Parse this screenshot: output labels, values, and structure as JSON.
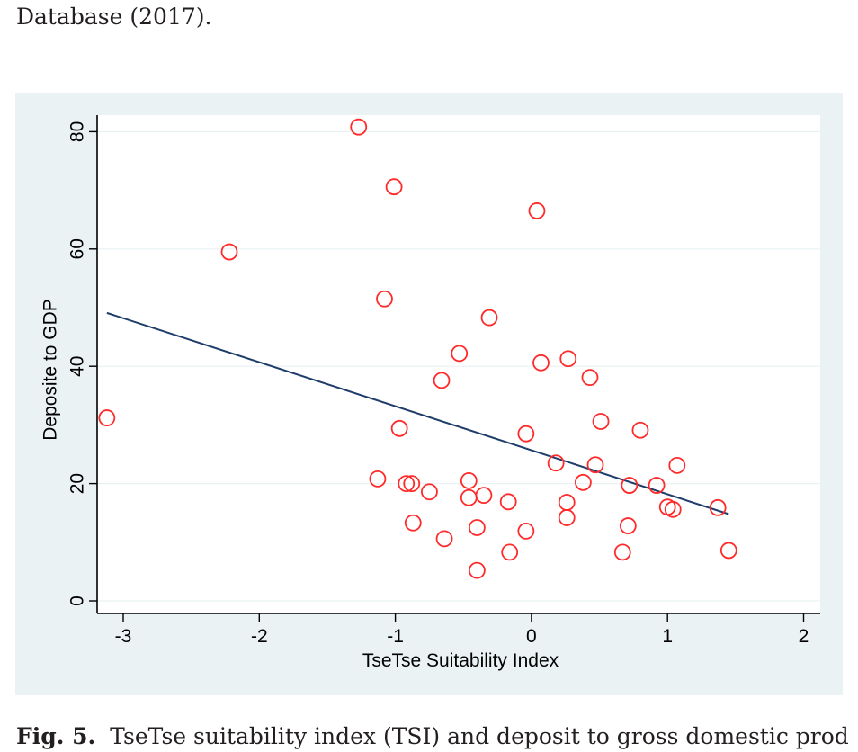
{
  "document": {
    "top_text": "Database (2017).",
    "caption_label": "Fig. 5.",
    "caption_text": "TseTse suitability index (TSI) and deposit to gross domestic prod"
  },
  "colors": {
    "panel_background": "#eaf2f3",
    "plot_background": "#ffffff",
    "grid": "#eaf2f3",
    "axis": "#000000",
    "marker": "#ff2a2a",
    "fit_line": "#1f3d6b"
  },
  "chart_data": {
    "type": "scatter",
    "title": "",
    "xlabel": "TseTse Suitability Index",
    "ylabel": "Deposite to GDP",
    "xlim": [
      -3.2,
      2.1
    ],
    "ylim": [
      -2,
      83
    ],
    "xticks": [
      -3,
      -2,
      -1,
      0,
      1,
      2
    ],
    "xtick_labels": [
      "-3",
      "-2",
      "-1",
      "0",
      "1",
      "2"
    ],
    "yticks": [
      0,
      20,
      40,
      60,
      80
    ],
    "ytick_labels": [
      "0",
      "20",
      "40",
      "60",
      "80"
    ],
    "grid": "horizontal",
    "legend": "none",
    "series": [
      {
        "marker": "hollow-circle",
        "points": [
          [
            -3.12,
            31.2
          ],
          [
            -2.22,
            59.5
          ],
          [
            -1.27,
            80.8
          ],
          [
            -1.01,
            70.6
          ],
          [
            -1.08,
            51.5
          ],
          [
            -0.97,
            29.4
          ],
          [
            -1.13,
            20.8
          ],
          [
            -0.92,
            20.0
          ],
          [
            -0.88,
            20.0
          ],
          [
            -0.87,
            13.3
          ],
          [
            -0.75,
            18.6
          ],
          [
            -0.66,
            37.6
          ],
          [
            -0.64,
            10.6
          ],
          [
            -0.53,
            42.2
          ],
          [
            -0.46,
            20.5
          ],
          [
            -0.46,
            17.6
          ],
          [
            -0.4,
            12.5
          ],
          [
            -0.4,
            5.2
          ],
          [
            -0.35,
            18.0
          ],
          [
            -0.31,
            48.3
          ],
          [
            -0.17,
            16.9
          ],
          [
            -0.16,
            8.3
          ],
          [
            -0.04,
            28.5
          ],
          [
            -0.04,
            11.9
          ],
          [
            0.04,
            66.5
          ],
          [
            0.07,
            40.6
          ],
          [
            0.18,
            23.5
          ],
          [
            0.26,
            16.8
          ],
          [
            0.26,
            14.2
          ],
          [
            0.27,
            41.3
          ],
          [
            0.38,
            20.2
          ],
          [
            0.43,
            38.1
          ],
          [
            0.47,
            23.2
          ],
          [
            0.51,
            30.6
          ],
          [
            0.67,
            8.3
          ],
          [
            0.71,
            12.8
          ],
          [
            0.72,
            19.7
          ],
          [
            0.8,
            29.1
          ],
          [
            0.92,
            19.7
          ],
          [
            1.0,
            16.0
          ],
          [
            1.04,
            15.6
          ],
          [
            1.07,
            23.1
          ],
          [
            1.37,
            15.9
          ],
          [
            1.45,
            8.6
          ]
        ]
      }
    ],
    "fit_line": {
      "x": [
        -3.12,
        1.45
      ],
      "y": [
        49.1,
        14.8
      ]
    }
  }
}
